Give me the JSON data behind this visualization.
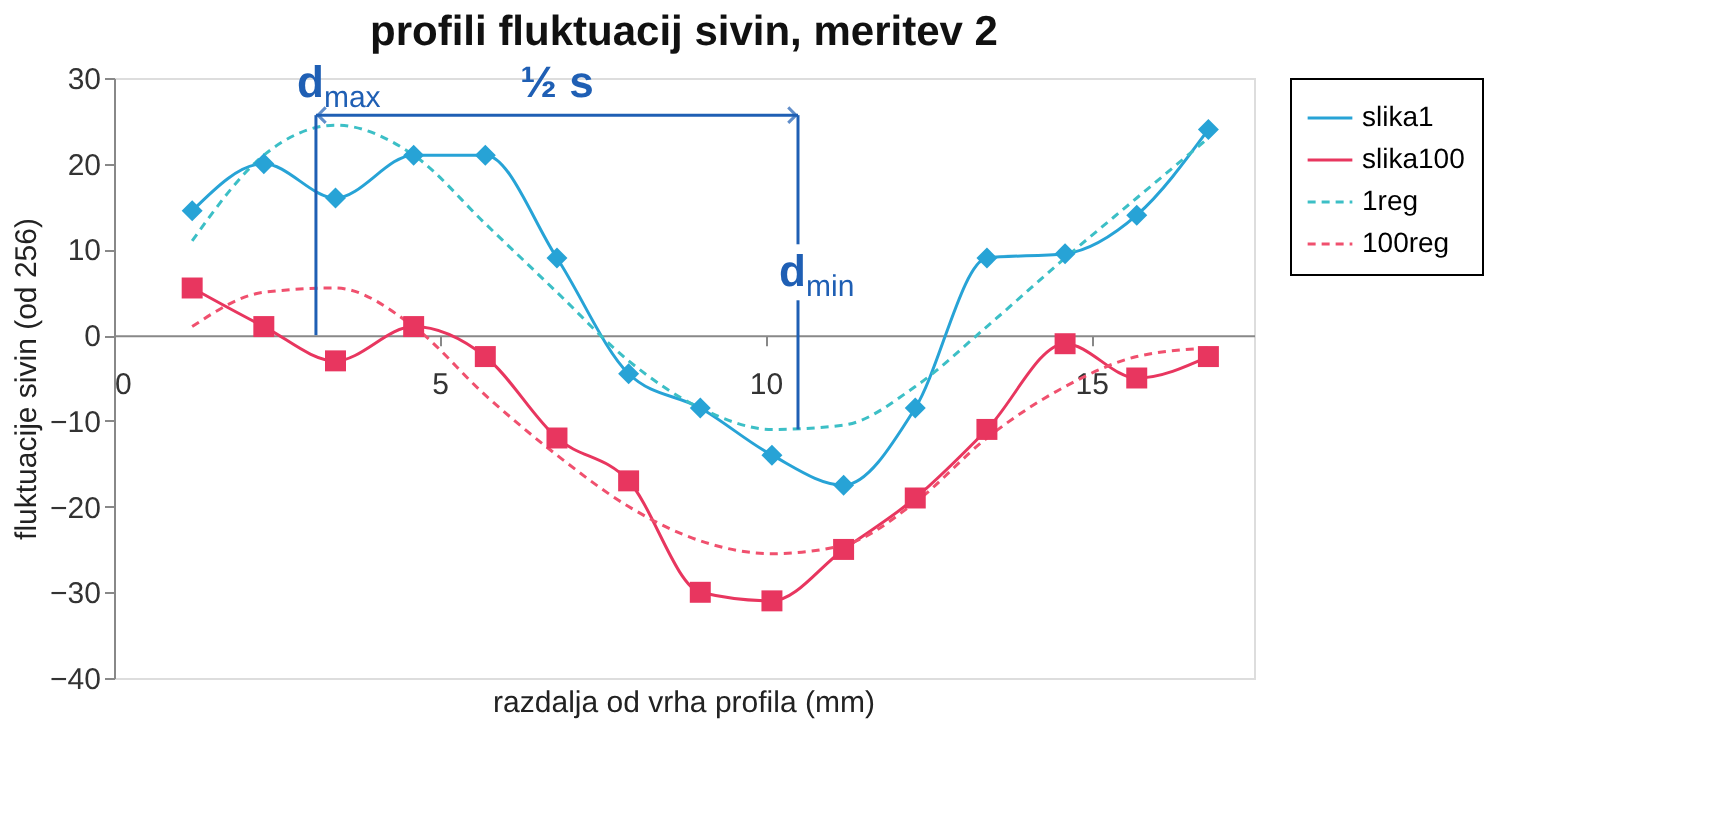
{
  "chart_data": {
    "type": "line",
    "title": "profili fluktuacij sivin, meritev 2",
    "xlabel": "razdalja od vrha profila (mm)",
    "ylabel": "fluktuacije sivin (od 256)",
    "x": [
      1.2,
      2.3,
      3.4,
      4.6,
      5.7,
      6.8,
      7.9,
      9.0,
      10.1,
      11.2,
      12.3,
      13.4,
      14.6,
      15.7,
      16.8
    ],
    "series": [
      {
        "name": "slika1",
        "color": "#27a3d6",
        "marker": "diamond",
        "line_style": "solid",
        "values": [
          14.5,
          20,
          16,
          21,
          21,
          9,
          -4.5,
          -8.5,
          -14,
          -17.5,
          -8.5,
          9,
          9.5,
          14,
          24
        ]
      },
      {
        "name": "slika100",
        "color": "#e8365f",
        "marker": "square",
        "line_style": "solid",
        "values": [
          5.5,
          1,
          -3,
          1,
          -2.5,
          -12,
          -17,
          -30,
          -31,
          -25,
          -19,
          -11,
          -1,
          -5,
          -2.5
        ]
      },
      {
        "name": "1reg",
        "color": "#3cbfc6",
        "marker": "none",
        "line_style": "dashed",
        "values": [
          11,
          21,
          24.5,
          21,
          13,
          5,
          -3,
          -8.5,
          -11,
          -10.5,
          -6,
          1,
          9,
          16,
          23
        ]
      },
      {
        "name": "100reg",
        "color": "#f0506e",
        "marker": "none",
        "line_style": "dashed",
        "values": [
          1,
          5,
          5.5,
          1,
          -7,
          -14,
          -20,
          -24,
          -25.5,
          -24.5,
          -19.5,
          -12,
          -6,
          -2.5,
          -1.5
        ]
      }
    ],
    "annotations": [
      {
        "text": "d$_{max}$",
        "x": 3.1,
        "y": 24.5
      },
      "½ s",
      {
        "text": "d$_{min}$",
        "x": 10.5,
        "y": -11
      }
    ],
    "xlim": [
      0,
      17.5
    ],
    "xticks": [
      0,
      5,
      10,
      15
    ],
    "ylim": [
      -40,
      30
    ],
    "yticks": [
      -40,
      -30,
      -20,
      -10,
      0,
      10,
      20,
      30
    ],
    "grid": false,
    "legend": "right"
  }
}
